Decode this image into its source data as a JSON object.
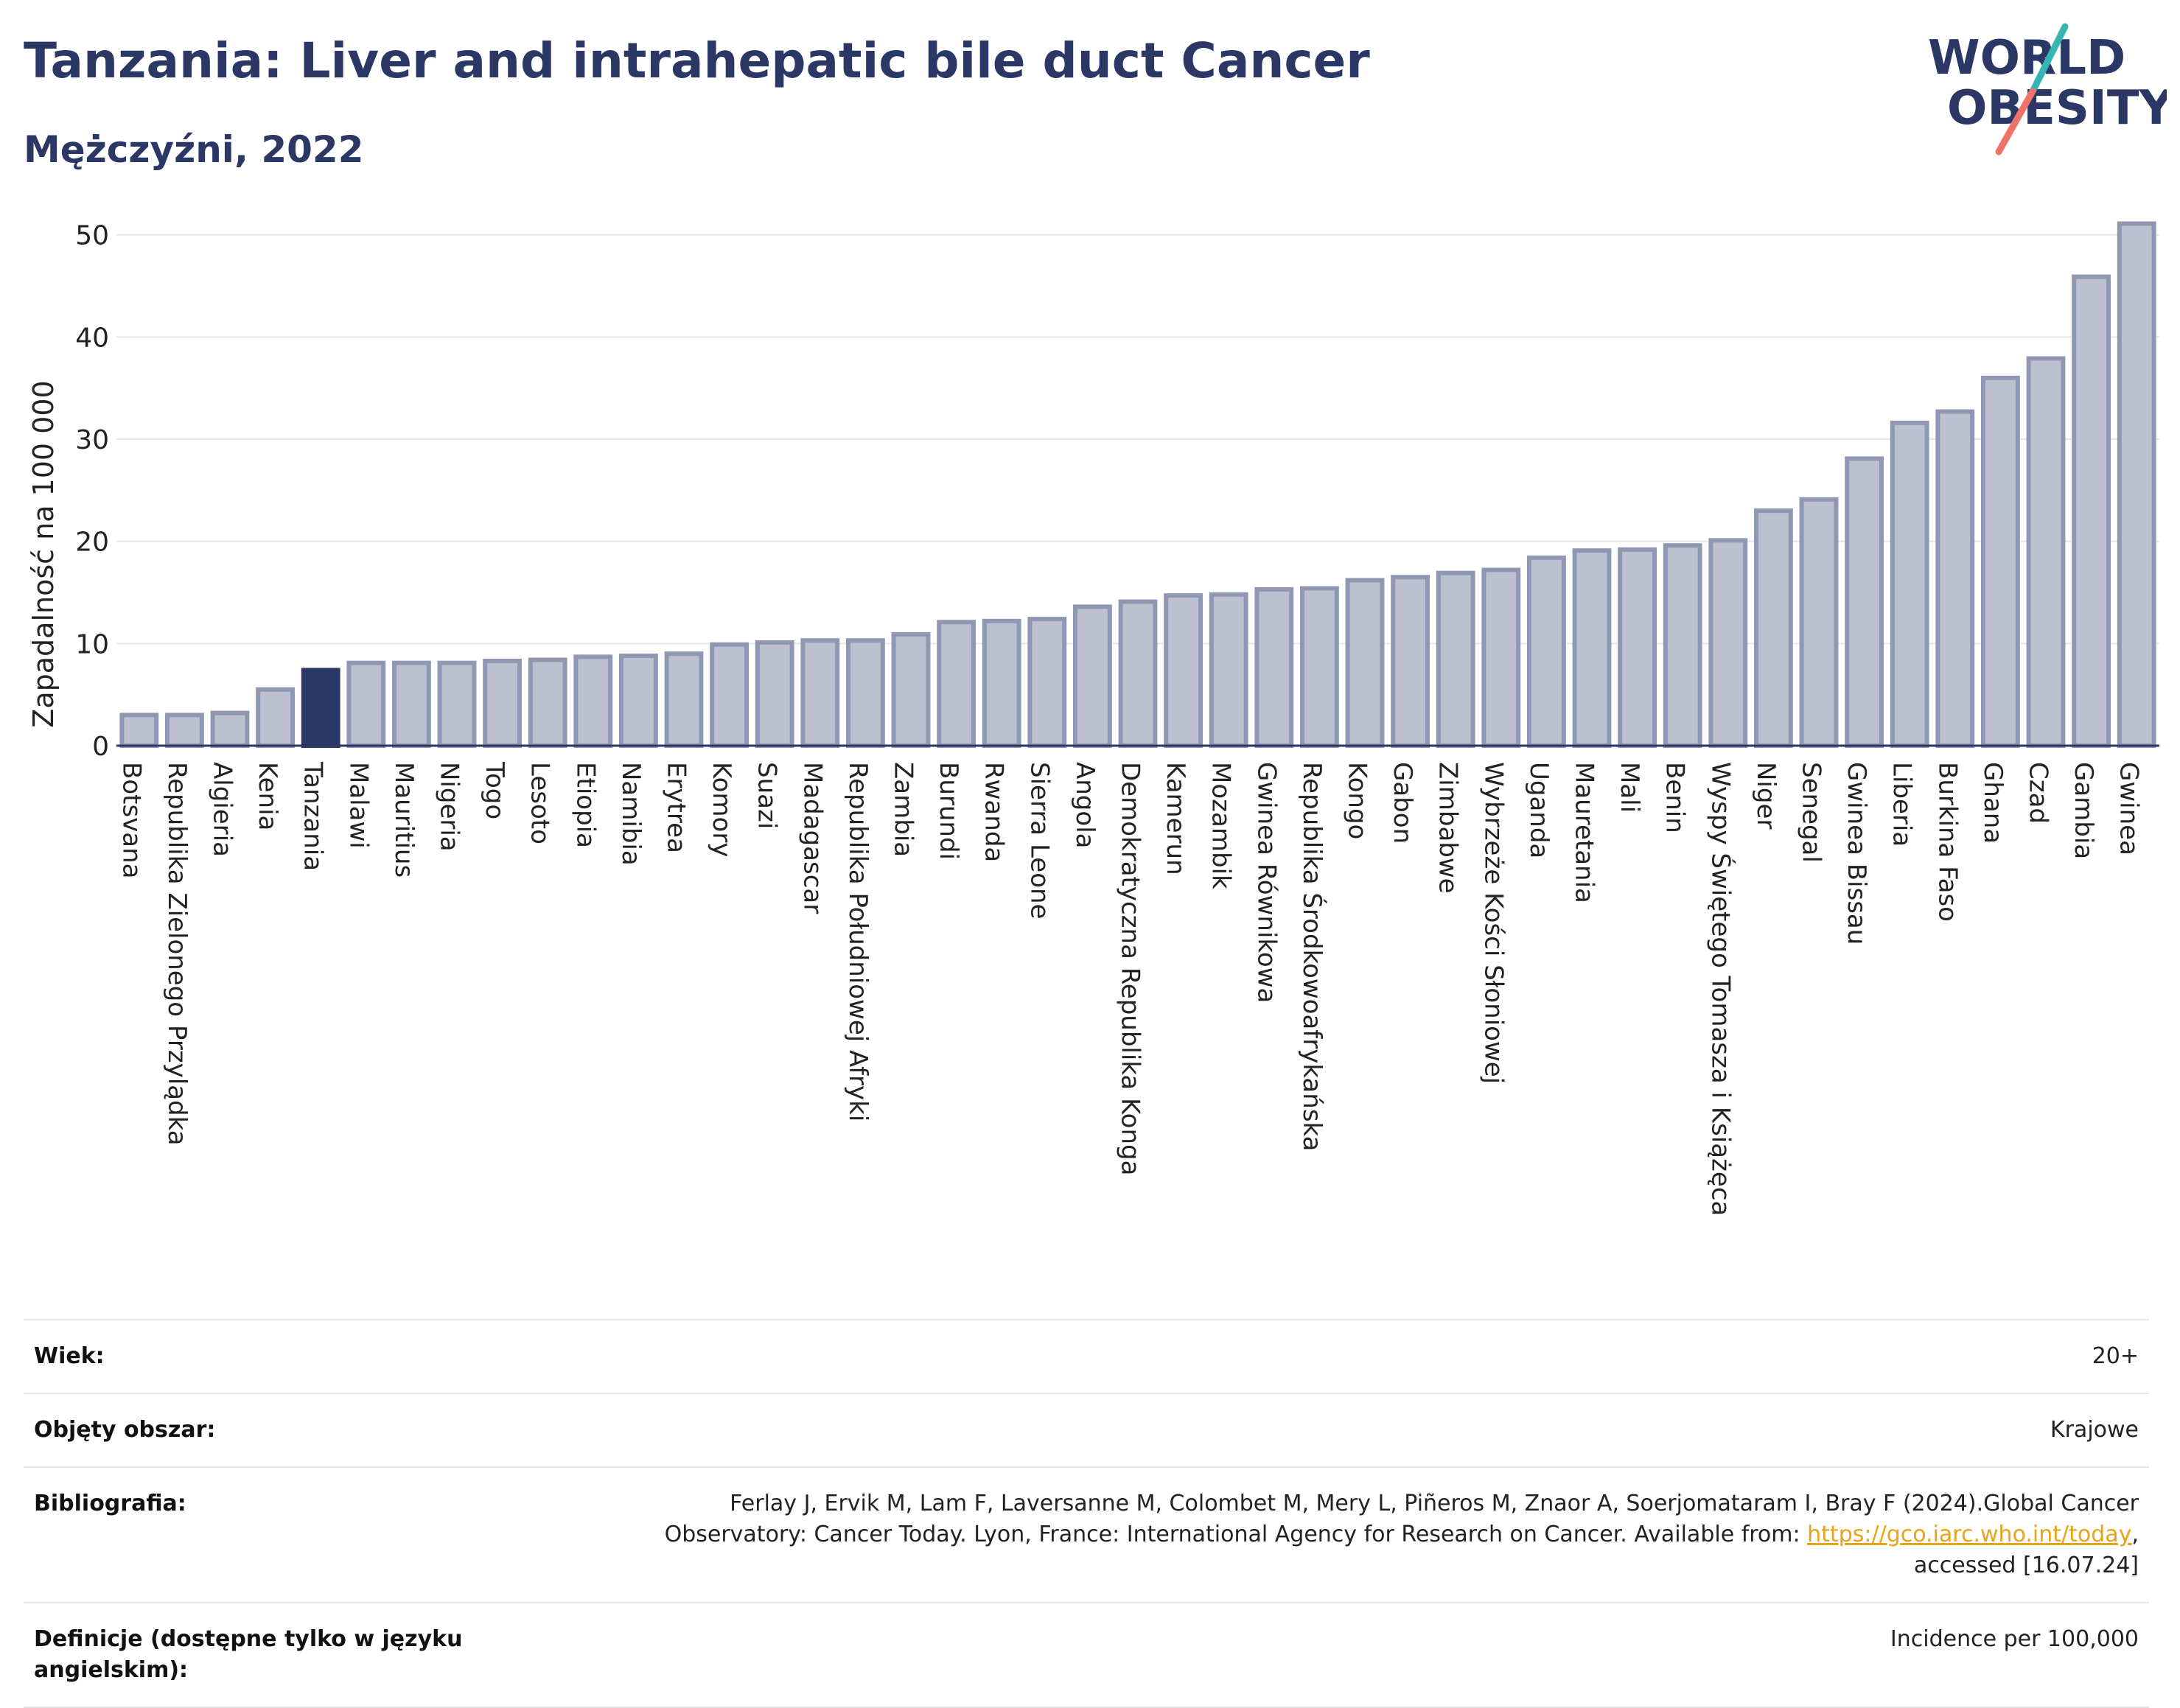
{
  "title": "Tanzania: Liver and intrahepatic bile duct Cancer",
  "subtitle": "Mężczyźni, 2022",
  "logo": {
    "line1": "WORLD",
    "line2": "OBESITY"
  },
  "colors": {
    "title": "#2b3866",
    "bar": "#bcc0cf",
    "bar_stroke": "#8f97b3",
    "highlight": "#2b3866",
    "grid": "#e6e6ea",
    "link": "#e8a317",
    "logo_slash_teal": "#35b6b4",
    "logo_slash_coral": "#f0736a"
  },
  "chart_data": {
    "type": "bar",
    "ylabel": "Zapadalność na 100 000",
    "xlabel": "",
    "ylim": [
      0,
      52
    ],
    "yticks": [
      0,
      10,
      20,
      30,
      40,
      50
    ],
    "grid": true,
    "highlight": "Tanzania",
    "categories": [
      "Botsvana",
      "Republika Zielonego Przylądka",
      "Algieria",
      "Kenia",
      "Tanzania",
      "Malawi",
      "Mauritius",
      "Nigeria",
      "Togo",
      "Lesoto",
      "Etiopia",
      "Namibia",
      "Erytrea",
      "Komory",
      "Suazi",
      "Madagascar",
      "Republika Południowej Afryki",
      "Zambia",
      "Burundi",
      "Rwanda",
      "Sierra Leone",
      "Angola",
      "Demokratyczna Republika Konga",
      "Kamerun",
      "Mozambik",
      "Gwinea Równikowa",
      "Republika Środkowoafrykańska",
      "Kongo",
      "Gabon",
      "Zimbabwe",
      "Wybrzeże Kości Słoniowej",
      "Uganda",
      "Mauretania",
      "Mali",
      "Benin",
      "Wyspy Świętego Tomasza i Książęca",
      "Niger",
      "Senegal",
      "Gwinea Bissau",
      "Liberia",
      "Burkina Faso",
      "Ghana",
      "Czad",
      "Gambia",
      "Gwinea"
    ],
    "values": [
      3.0,
      3.0,
      3.2,
      5.5,
      7.4,
      8.1,
      8.1,
      8.1,
      8.3,
      8.4,
      8.7,
      8.8,
      9.0,
      9.9,
      10.1,
      10.3,
      10.3,
      10.9,
      12.1,
      12.2,
      12.4,
      13.6,
      14.1,
      14.7,
      14.8,
      15.3,
      15.4,
      16.2,
      16.5,
      16.9,
      17.2,
      18.4,
      19.1,
      19.2,
      19.6,
      20.1,
      23.0,
      24.1,
      28.1,
      31.6,
      32.7,
      36.0,
      37.9,
      45.9,
      51.1
    ]
  },
  "info": [
    {
      "key": "Wiek:",
      "value": "20+"
    },
    {
      "key": "Objęty obszar:",
      "value": "Krajowe"
    },
    {
      "key": "Bibliografia:",
      "value_line1": "Ferlay J, Ervik M, Lam F, Laversanne M, Colombet M, Mery L, Piñeros M, Znaor A, Soerjomataram I, Bray F (2024).Global Cancer",
      "value_line2": "Observatory: Cancer Today. Lyon, France: International Agency for Research on Cancer. Available from: ",
      "link": "https://gco.iarc.who.int/today",
      "value_line2_end": ",",
      "value_line3": "accessed [16.07.24]"
    },
    {
      "key": "Definicje (dostępne tylko w języku angielskim):",
      "value": "Incidence per 100,000"
    }
  ]
}
